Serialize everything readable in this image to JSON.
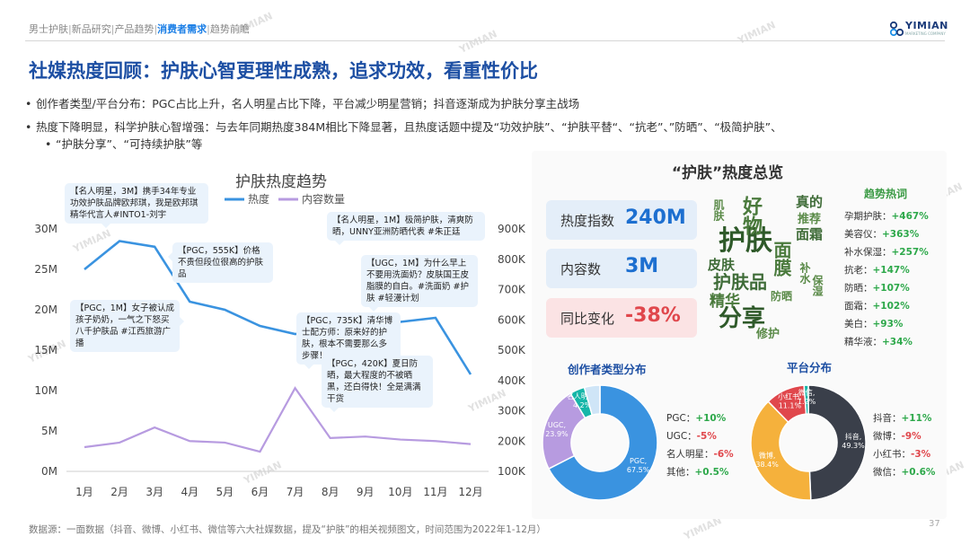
{
  "breadcrumb": {
    "items": [
      "男士护肤",
      "新品研究",
      "产品趋势",
      "消费者需求",
      "趋势前瞻"
    ],
    "active_index": 3,
    "separator": "|"
  },
  "logo": {
    "text": "YIMIAN",
    "sub": "MARKETING COMPANY"
  },
  "title": "社媒热度回顾：护肤心智更理性成熟，追求功效，看重性价比",
  "bullets": [
    "创作者类型/平台分布：PGC占比上升，名人明星占比下降，平台减少明星营销；抖音逐渐成为护肤分享主战场",
    "热度下降明显，科学护肤心智增强：与去年同期热度384M相比下降显著，且热度话题中提及“功效护肤”、“护肤平替“、“抗老”、”防晒”、“极简护肤”、",
    "“护肤分享”、“可持续护肤”等"
  ],
  "chart_data": {
    "type": "line",
    "title": "护肤热度趋势",
    "categories": [
      "1月",
      "2月",
      "3月",
      "4月",
      "5月",
      "6月",
      "7月",
      "8月",
      "9月",
      "10月",
      "11月",
      "12月"
    ],
    "series": [
      {
        "name": "热度",
        "axis": "left",
        "color": "#3a93e0",
        "values": [
          25,
          28.5,
          27.8,
          21,
          20,
          18,
          17,
          17.5,
          18,
          18.5,
          19,
          12
        ]
      },
      {
        "name": "内容数量",
        "axis": "right",
        "color": "#b79be0",
        "values": [
          180000,
          195000,
          245000,
          200000,
          195000,
          165000,
          375000,
          210000,
          215000,
          205000,
          200000,
          190000
        ]
      }
    ],
    "y_left": {
      "ticks": [
        "0M",
        "5M",
        "10M",
        "15M",
        "20M",
        "25M",
        "30M"
      ],
      "range": [
        0,
        30
      ]
    },
    "y_right": {
      "ticks": [
        "100K",
        "200K",
        "300K",
        "400K",
        "500K",
        "600K",
        "700K",
        "800K",
        "900K"
      ],
      "range": [
        100000,
        900000
      ]
    },
    "legend": "top"
  },
  "callouts": [
    {
      "text": "【名人明星，3M】携手34年专业功效护肤品牌欧邦琪，我是欧邦琪精华代言人#INTO1-刘宇"
    },
    {
      "text": "【PGC，555K】价格不贵但段位很高的护肤品"
    },
    {
      "text": "【PGC，1M】女子被认成孩子奶奶，一气之下怒买八千护肤品 #江西旅游广播"
    },
    {
      "text": "【名人明星，1M】极简护肤，清爽防晒，UNNY亚洲防晒代表 #朱正廷"
    },
    {
      "text": "【UGC，1M】为什么早上不要用洗面奶？皮肤国王皮脂膜的自白。#洗面奶 #护肤 #轻漫计划"
    },
    {
      "text": "【PGC，735K】清华博士配方师：原来好的护肤，根本不需要那么多步骤！"
    },
    {
      "text": "【PGC，420K】夏日防晒，最大程度的不被晒黑，还白得快！全是满满干货"
    }
  ],
  "overview": {
    "title": "“护肤”热度总览",
    "stats": [
      {
        "label": "热度指数",
        "value": "240M",
        "bg": "#e4eef9",
        "color": "#1d6fd0"
      },
      {
        "label": "内容数",
        "value": "3M",
        "bg": "#e4eef9",
        "color": "#1d6fd0"
      },
      {
        "label": "同比变化",
        "value": "-38%",
        "bg": "#fbe3e4",
        "color": "#e0474c"
      }
    ],
    "wordcloud": [
      "护肤",
      "好物",
      "分享",
      "护肤品",
      "精华",
      "面膜",
      "皮肤",
      "真的",
      "推荐",
      "面霜",
      "修护",
      "防晒",
      "肌肤",
      "补水",
      "保湿"
    ],
    "trend_title": "趋势热词",
    "trends": [
      {
        "word": "孕期护肤：",
        "change": "+467%"
      },
      {
        "word": "美容仪：",
        "change": "+363%"
      },
      {
        "word": "补水保湿：",
        "change": "+257%"
      },
      {
        "word": "抗老：",
        "change": "+147%"
      },
      {
        "word": "防晒：",
        "change": "+107%"
      },
      {
        "word": "面霜：",
        "change": "+102%"
      },
      {
        "word": "美白：",
        "change": "+93%"
      },
      {
        "word": "精华液：",
        "change": "+34%"
      }
    ]
  },
  "creator_pie": {
    "title": "创作者类型分布",
    "slices": [
      {
        "name": "PGC",
        "value": 67.5,
        "color": "#3a93e0",
        "label": "PGC,\n67.5%"
      },
      {
        "name": "UGC",
        "value": 23.9,
        "color": "#b79be0",
        "label": "UGC,\n23.9%"
      },
      {
        "name": "名人明星",
        "value": 4.2,
        "color": "#16b6a8",
        "label": "名人明星,\n4.2%"
      },
      {
        "name": "其他",
        "value": 4.4,
        "color": "#cfe5f7",
        "label": ""
      }
    ],
    "legend": [
      {
        "name": "PGC：",
        "change": "+10%",
        "sign": "pos"
      },
      {
        "name": "UGC：",
        "change": "-5%",
        "sign": "neg"
      },
      {
        "name": "名人明星：",
        "change": "-6%",
        "sign": "neg"
      },
      {
        "name": "其他：",
        "change": "+0.5%",
        "sign": "pos"
      }
    ]
  },
  "platform_pie": {
    "title": "平台分布",
    "slices": [
      {
        "name": "抖音",
        "value": 49.3,
        "color": "#3a3f4a",
        "label": "抖音,\n49.3%"
      },
      {
        "name": "微博",
        "value": 38.4,
        "color": "#f5b13c",
        "label": "微博,\n38.4%"
      },
      {
        "name": "小红书",
        "value": 11.1,
        "color": "#e0474c",
        "label": "小红书,\n11.1%"
      },
      {
        "name": "微信",
        "value": 1.2,
        "color": "#16b6a8",
        "label": "微信,\n1.2%"
      }
    ],
    "legend": [
      {
        "name": "抖音：",
        "change": "+11%",
        "sign": "pos"
      },
      {
        "name": "微博：",
        "change": "-9%",
        "sign": "neg"
      },
      {
        "name": "小红书：",
        "change": "-3%",
        "sign": "neg"
      },
      {
        "name": "微信：",
        "change": "+0.6%",
        "sign": "pos"
      }
    ]
  },
  "footer": "数据源：一面数据（抖音、微博、小红书、微信等六大社媒数据，提及“护肤”的相关视频图文，时间范围为2022年1-12月）",
  "page_number": "37",
  "watermark": "YIMIAN"
}
